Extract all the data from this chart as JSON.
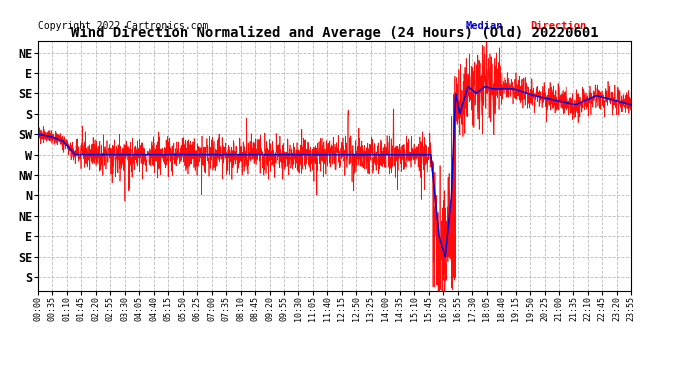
{
  "title": "Wind Direction Normalized and Average (24 Hours) (Old) 20220601",
  "copyright": "Copyright 2022 Cartronics.com",
  "background_color": "#ffffff",
  "plot_bg_color": "#ffffff",
  "grid_color": "#b0b0b0",
  "red_color": "#ff0000",
  "blue_color": "#0000dd",
  "ytick_labels": [
    "S",
    "SE",
    "E",
    "NE",
    "N",
    "NW",
    "W",
    "SW",
    "S",
    "SE",
    "E",
    "NE"
  ],
  "ytick_values": [
    360,
    315,
    270,
    225,
    180,
    135,
    90,
    45,
    0,
    -45,
    -90,
    -135
  ],
  "ylim": [
    390,
    -160
  ],
  "xlim_minutes": [
    0,
    1435
  ],
  "xtick_interval_minutes": 35
}
